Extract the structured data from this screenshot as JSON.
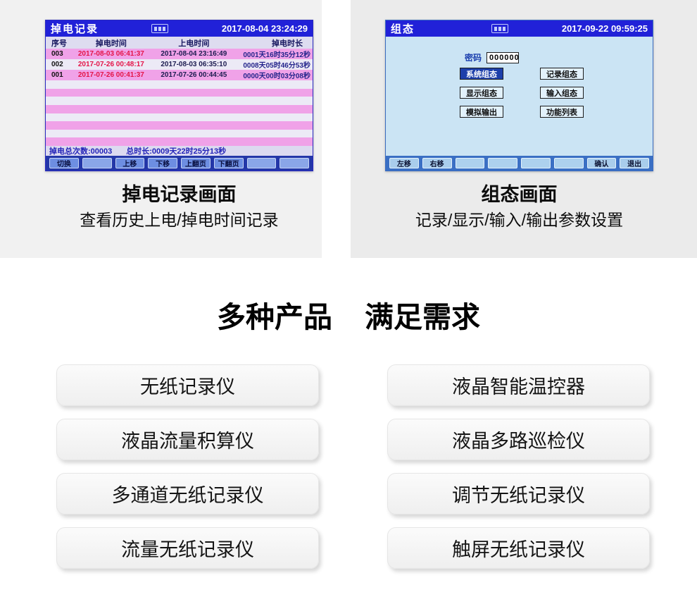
{
  "left_screen": {
    "title": "掉电记录",
    "datetime": "2017-08-04 23:24:29",
    "table": {
      "headers": [
        "序号",
        "掉电时间",
        "上电时间",
        "掉电时长"
      ],
      "rows": [
        {
          "no": "003",
          "off": "2017-08-03 06:41:37",
          "on": "2017-08-04 23:16:49",
          "dur": "0001天16时35分12秒"
        },
        {
          "no": "002",
          "off": "2017-07-26 00:48:17",
          "on": "2017-08-03 06:35:10",
          "dur": "0008天05时46分53秒"
        },
        {
          "no": "001",
          "off": "2017-07-26 00:41:37",
          "on": "2017-07-26 00:44:45",
          "dur": "0000天00时03分08秒"
        }
      ],
      "empty_rows": 8
    },
    "summary": {
      "count_label": "掉电总次数:00003",
      "duration_label": "总时长:0009天22时25分13秒"
    },
    "fkeys": [
      "切换",
      "",
      "上移",
      "下移",
      "上翻页",
      "下翻页",
      "",
      ""
    ]
  },
  "left_caption": {
    "title": "掉电记录画面",
    "subtitle": "查看历史上电/掉电时间记录"
  },
  "right_screen": {
    "title": "组态",
    "datetime": "2017-09-22 09:59:25",
    "password_label": "密码",
    "password_value": "000000",
    "menu_buttons": [
      {
        "label": "系统组态",
        "selected": true
      },
      {
        "label": "记录组态",
        "selected": false
      },
      {
        "label": "显示组态",
        "selected": false
      },
      {
        "label": "输入组态",
        "selected": false
      },
      {
        "label": "模拟输出",
        "selected": false
      },
      {
        "label": "功能列表",
        "selected": false
      }
    ],
    "fkeys": [
      "左移",
      "右移",
      "",
      "",
      "",
      "",
      "确认",
      "退出"
    ]
  },
  "right_caption": {
    "title": "组态画面",
    "subtitle": "记录/显示/输入/输出参数设置"
  },
  "products": {
    "heading_left": "多种产品",
    "heading_right": "满足需求",
    "left_column": [
      "无纸记录仪",
      "液晶流量积算仪",
      "多通道无纸记录仪",
      "流量无纸记录仪"
    ],
    "right_column": [
      "液晶智能温控器",
      "液晶多路巡检仪",
      "调节无纸记录仪",
      "触屏无纸记录仪"
    ]
  },
  "colors": {
    "titlebar_blue": "#2121d8",
    "stripe_pink": "#f0a2e8",
    "stripe_light": "#eceaf6",
    "off_time_red": "#e41448",
    "config_body_blue": "#cbe4f4",
    "selected_menu_blue": "#1d3faa",
    "fkey_bar_navy": "#2336a8",
    "fkey_bar_cfg": "#3a6fc4"
  }
}
